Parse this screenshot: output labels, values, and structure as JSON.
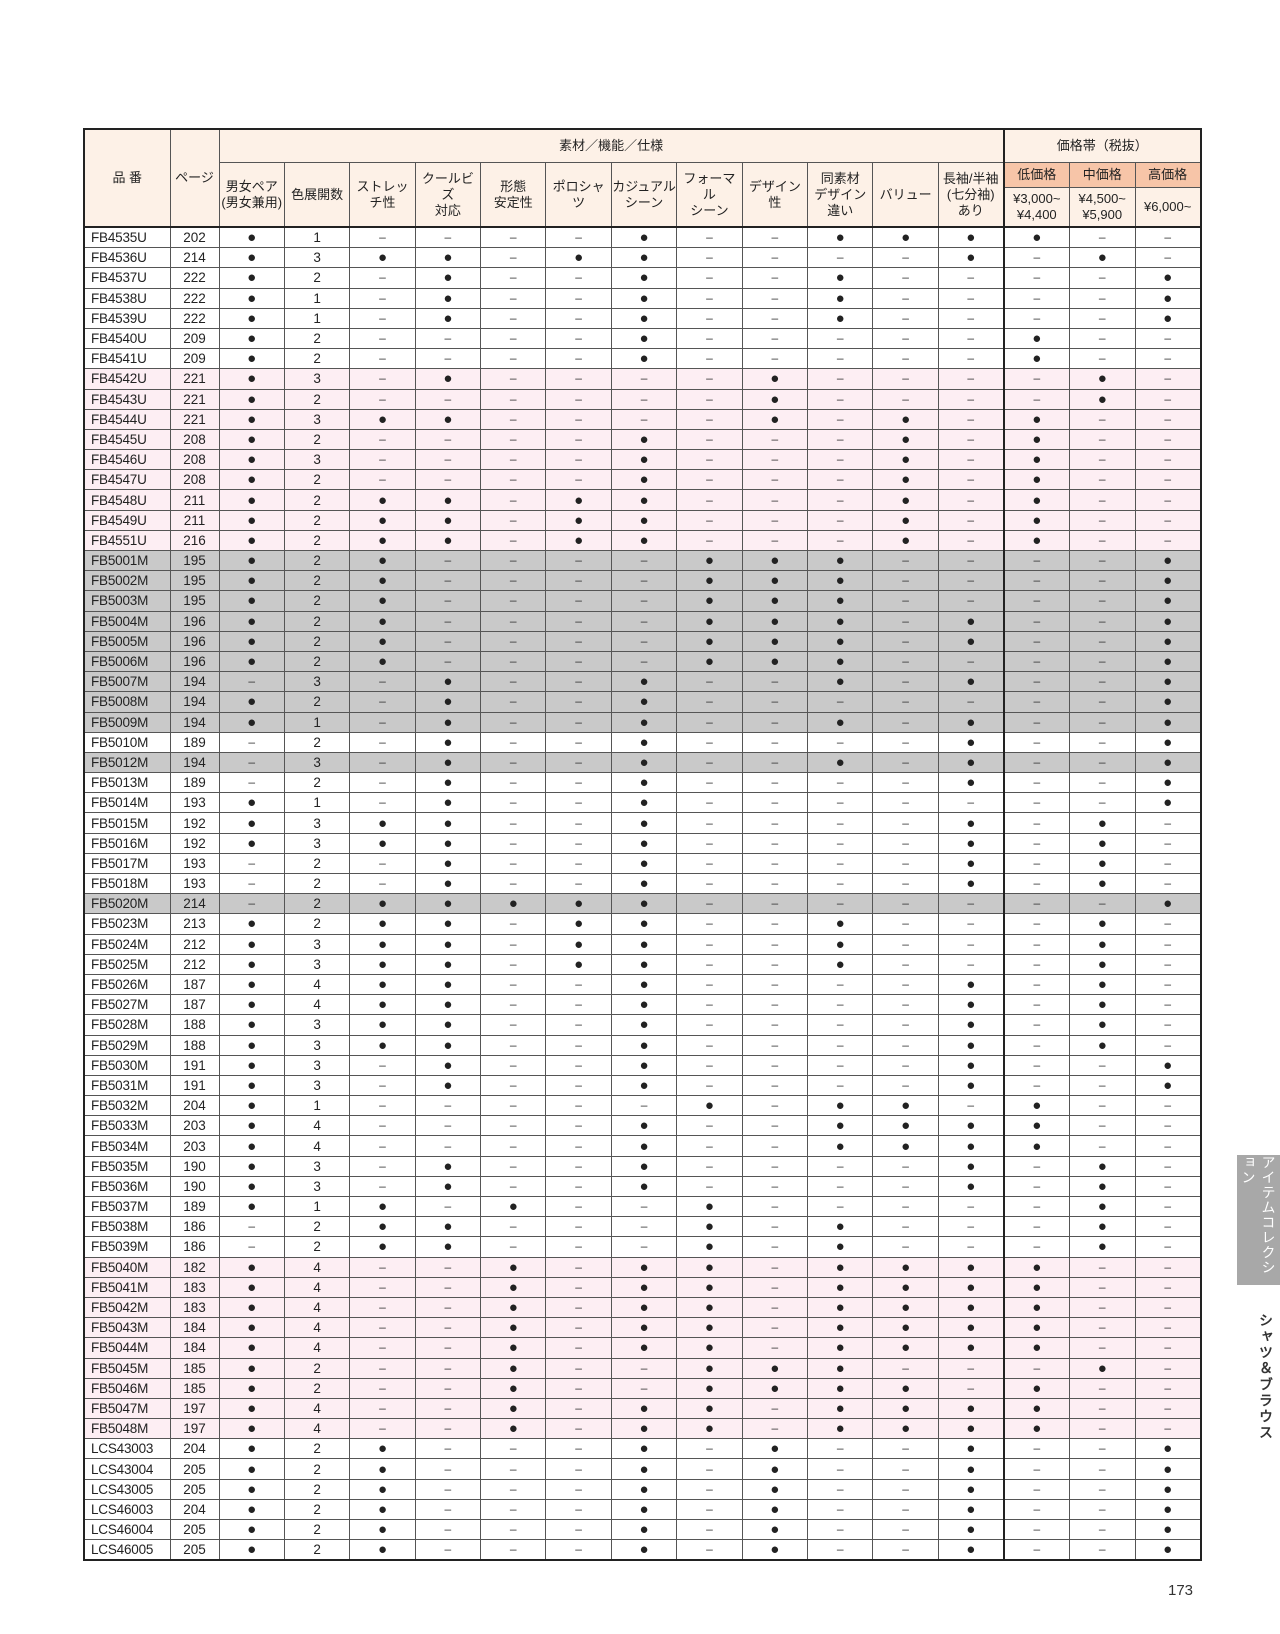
{
  "header": {
    "code": "品 番",
    "page": "ページ",
    "group_features": "素材／機能／仕様",
    "group_price": "価格帯（税抜）",
    "features": [
      "男女ペア\n(男女兼用)",
      "色展開数",
      "ストレッチ性",
      "クールビズ\n対応",
      "形態\n安定性",
      "ポロシャツ",
      "カジュアル\nシーン",
      "フォーマル\nシーン",
      "デザイン性",
      "同素材\nデザイン違い",
      "バリュー",
      "長袖/半袖\n(七分袖)\nあり"
    ],
    "price_labels": [
      "低価格",
      "中価格",
      "高価格"
    ],
    "price_ranges": [
      "¥3,000~\n¥4,400",
      "¥4,500~\n¥5,900",
      "¥6,000~"
    ]
  },
  "colors": {
    "pink_row": "#fdeef3",
    "gray_row": "#c9c9c9",
    "price_header": "#f7c5a8",
    "header_bg": "#fdf1e7"
  },
  "rows": [
    {
      "code": "FB4535U",
      "page": "202",
      "marks": "●1––––●––●●●●––"
    },
    {
      "code": "FB4536U",
      "page": "214",
      "marks": "●3●●–●●––––●–●–"
    },
    {
      "code": "FB4537U",
      "page": "222",
      "marks": "●2–●––●––●––––●"
    },
    {
      "code": "FB4538U",
      "page": "222",
      "marks": "●1–●––●––●––––●"
    },
    {
      "code": "FB4539U",
      "page": "222",
      "marks": "●1–●––●––●––––●"
    },
    {
      "code": "FB4540U",
      "page": "209",
      "marks": "●2––––●–––––●––"
    },
    {
      "code": "FB4541U",
      "page": "209",
      "marks": "●2––––●–––––●––"
    },
    {
      "code": "FB4542U",
      "page": "221",
      "marks": "●3–●––––●––––●–",
      "band": "pink"
    },
    {
      "code": "FB4543U",
      "page": "221",
      "marks": "●2––––––●––––●–",
      "band": "pink"
    },
    {
      "code": "FB4544U",
      "page": "221",
      "marks": "●3●●––––●–●–●––",
      "band": "pink"
    },
    {
      "code": "FB4545U",
      "page": "208",
      "marks": "●2––––●–––●–●––",
      "band": "pink"
    },
    {
      "code": "FB4546U",
      "page": "208",
      "marks": "●3––––●–––●–●––",
      "band": "pink"
    },
    {
      "code": "FB4547U",
      "page": "208",
      "marks": "●2––––●–––●–●––",
      "band": "pink"
    },
    {
      "code": "FB4548U",
      "page": "211",
      "marks": "●2●●–●●–––●–●––",
      "band": "pink"
    },
    {
      "code": "FB4549U",
      "page": "211",
      "marks": "●2●●–●●–––●–●––",
      "band": "pink"
    },
    {
      "code": "FB4551U",
      "page": "216",
      "marks": "●2●●–●●–––●–●––",
      "band": "pink"
    },
    {
      "code": "FB5001M",
      "page": "195",
      "marks": "●2●––––●●●––––●",
      "band": "gray"
    },
    {
      "code": "FB5002M",
      "page": "195",
      "marks": "●2●––––●●●––––●",
      "band": "gray"
    },
    {
      "code": "FB5003M",
      "page": "195",
      "marks": "●2●––––●●●––––●",
      "band": "gray"
    },
    {
      "code": "FB5004M",
      "page": "196",
      "marks": "●2●––––●●●–●––●",
      "band": "gray"
    },
    {
      "code": "FB5005M",
      "page": "196",
      "marks": "●2●––––●●●–●––●",
      "band": "gray"
    },
    {
      "code": "FB5006M",
      "page": "196",
      "marks": "●2●––––●●●––––●",
      "band": "gray"
    },
    {
      "code": "FB5007M",
      "page": "194",
      "marks": "–3–●––●––●–●––●",
      "band": "gray"
    },
    {
      "code": "FB5008M",
      "page": "194",
      "marks": "●2–●––●–––––––●",
      "band": "gray"
    },
    {
      "code": "FB5009M",
      "page": "194",
      "marks": "●1–●––●––●–●––●",
      "band": "gray"
    },
    {
      "code": "FB5010M",
      "page": "189",
      "marks": "–2–●––●––––●––●"
    },
    {
      "code": "FB5012M",
      "page": "194",
      "marks": "–3–●––●––●–●––●",
      "band": "gray"
    },
    {
      "code": "FB5013M",
      "page": "189",
      "marks": "–2–●––●––––●––●"
    },
    {
      "code": "FB5014M",
      "page": "193",
      "marks": "●1–●––●–––––––●"
    },
    {
      "code": "FB5015M",
      "page": "192",
      "marks": "●3●●––●––––●–●–"
    },
    {
      "code": "FB5016M",
      "page": "192",
      "marks": "●3●●––●––––●–●–"
    },
    {
      "code": "FB5017M",
      "page": "193",
      "marks": "–2–●––●––––●–●–"
    },
    {
      "code": "FB5018M",
      "page": "193",
      "marks": "–2–●––●––––●–●–"
    },
    {
      "code": "FB5020M",
      "page": "214",
      "marks": "–2●●●●●–––––––●",
      "band": "gray"
    },
    {
      "code": "FB5023M",
      "page": "213",
      "marks": "●2●●–●●––●–––●–"
    },
    {
      "code": "FB5024M",
      "page": "212",
      "marks": "●3●●–●●––●–––●–"
    },
    {
      "code": "FB5025M",
      "page": "212",
      "marks": "●3●●–●●––●–––●–"
    },
    {
      "code": "FB5026M",
      "page": "187",
      "marks": "●4●●––●––––●–●–"
    },
    {
      "code": "FB5027M",
      "page": "187",
      "marks": "●4●●––●––––●–●–"
    },
    {
      "code": "FB5028M",
      "page": "188",
      "marks": "●3●●––●––––●–●–"
    },
    {
      "code": "FB5029M",
      "page": "188",
      "marks": "●3●●––●––––●–●–"
    },
    {
      "code": "FB5030M",
      "page": "191",
      "marks": "●3–●––●––––●––●"
    },
    {
      "code": "FB5031M",
      "page": "191",
      "marks": "●3–●––●––––●––●"
    },
    {
      "code": "FB5032M",
      "page": "204",
      "marks": "●1–––––●–●●–●––"
    },
    {
      "code": "FB5033M",
      "page": "203",
      "marks": "●4––––●––●●●●––"
    },
    {
      "code": "FB5034M",
      "page": "203",
      "marks": "●4––––●––●●●●––"
    },
    {
      "code": "FB5035M",
      "page": "190",
      "marks": "●3–●––●––––●–●–"
    },
    {
      "code": "FB5036M",
      "page": "190",
      "marks": "●3–●––●––––●–●–"
    },
    {
      "code": "FB5037M",
      "page": "189",
      "marks": "●1●–●––●–––––●–"
    },
    {
      "code": "FB5038M",
      "page": "186",
      "marks": "–2●●–––●–●–––●–"
    },
    {
      "code": "FB5039M",
      "page": "186",
      "marks": "–2●●–––●–●–––●–"
    },
    {
      "code": "FB5040M",
      "page": "182",
      "marks": "●4––●–●●–●●●●––",
      "band": "pink"
    },
    {
      "code": "FB5041M",
      "page": "183",
      "marks": "●4––●–●●–●●●●––",
      "band": "pink"
    },
    {
      "code": "FB5042M",
      "page": "183",
      "marks": "●4––●–●●–●●●●––",
      "band": "pink"
    },
    {
      "code": "FB5043M",
      "page": "184",
      "marks": "●4––●–●●–●●●●––",
      "band": "pink"
    },
    {
      "code": "FB5044M",
      "page": "184",
      "marks": "●4––●–●●–●●●●––",
      "band": "pink"
    },
    {
      "code": "FB5045M",
      "page": "185",
      "marks": "●2––●––●●●–––●–",
      "band": "pink"
    },
    {
      "code": "FB5046M",
      "page": "185",
      "marks": "●2––●––●●●●–●––",
      "band": "pink"
    },
    {
      "code": "FB5047M",
      "page": "197",
      "marks": "●4––●–●●–●●●●––",
      "band": "pink"
    },
    {
      "code": "FB5048M",
      "page": "197",
      "marks": "●4––●–●●–●●●●––",
      "band": "pink"
    },
    {
      "code": "LCS43003",
      "page": "204",
      "marks": "●2●–––●–●––●––●"
    },
    {
      "code": "LCS43004",
      "page": "205",
      "marks": "●2●–––●–●––●––●"
    },
    {
      "code": "LCS43005",
      "page": "205",
      "marks": "●2●–––●–●––●––●"
    },
    {
      "code": "LCS46003",
      "page": "204",
      "marks": "●2●–––●–●––●––●"
    },
    {
      "code": "LCS46004",
      "page": "205",
      "marks": "●2●–––●–●––●––●"
    },
    {
      "code": "LCS46005",
      "page": "205",
      "marks": "●2●–––●–●––●––●"
    }
  ],
  "side": {
    "tab": "アイテムコレクション",
    "section": "シャツ＆ブラウス"
  },
  "page_number": "173"
}
